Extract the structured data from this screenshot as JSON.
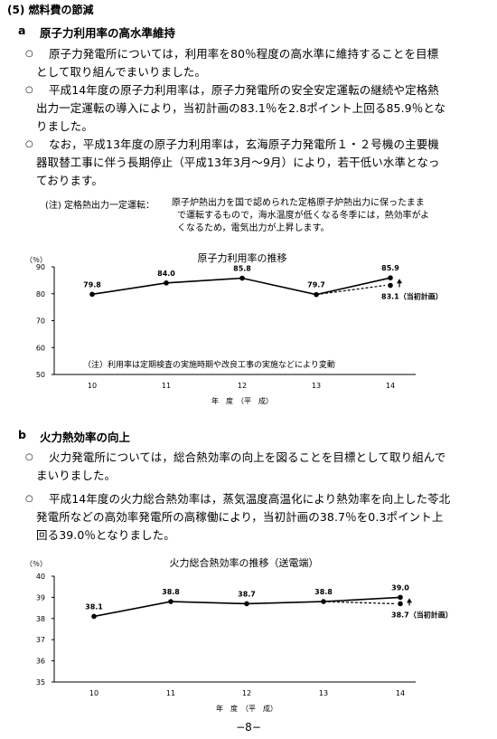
{
  "section": {
    "heading": "(5) 燃料費の節減",
    "a": {
      "marker": "a",
      "title": "原子力利用率の高水準維持",
      "bullets": [
        {
          "lines": [
            "原子力発電所については，利用率を80％程度の高水準に維持することを目標",
            "として取り組んでまいりました。"
          ]
        },
        {
          "lines": [
            "平成14年度の原子力利用率は，原子力発電所の安全安定運転の継続や定格熱",
            "出力一定運転の導入により，当初計画の83.1％を2.8ポイント上回る85.9％とな",
            "りました。"
          ]
        },
        {
          "lines": [
            "なお，平成13年度の原子力利用率は，玄海原子力発電所１・２号機の主要機",
            "器取替工事に伴う長期停止（平成13年3月～9月）により，若干低い水準となっ",
            "ております。"
          ]
        }
      ],
      "note_label": "(注) 定格熱出力一定運転：",
      "note_lines": [
        "原子炉熱出力を国で認められた定格原子炉熱出力に保ったまま",
        "で運転するもので，海水温度が低くなる冬季には，熱効率がよ",
        "くなるため，電気出力が上昇します。"
      ]
    },
    "b": {
      "marker": "b",
      "title": "火力熱効率の向上",
      "bullets": [
        {
          "lines": [
            "火力発電所については，総合熱効率の向上を図ることを目標として取り組んで",
            "まいりました。"
          ]
        },
        {
          "lines": [
            "平成14年度の火力総合熱効率は，蒸気温度高温化により熱効率を向上した苓北",
            "発電所などの高効率発電所の高稼働により，当初計画の38.7％を0.3ポイント上",
            "回る39.0％となりました。"
          ]
        }
      ]
    }
  },
  "bullet_glyph": "○",
  "chart_data": [
    {
      "type": "line",
      "title": "原子力利用率の推移",
      "ylabel": "（％）",
      "xlabel": "年　度　（平　成）",
      "categories": [
        "10",
        "11",
        "12",
        "13",
        "14"
      ],
      "yticks": [
        "90",
        "80",
        "70",
        "60",
        "50"
      ],
      "ylim": [
        50,
        90
      ],
      "series": [
        {
          "values": [
            79.8,
            84.0,
            85.8,
            79.7,
            85.9
          ]
        }
      ],
      "data_labels": [
        "79.8",
        "84.0",
        "85.8",
        "79.7",
        "85.9"
      ],
      "plan": {
        "value": 83.1,
        "label": "83.1（当初計画）"
      },
      "annotation": "（注）利用率は定期検査の実施時期や改良工事の実施などにより変動"
    },
    {
      "type": "line",
      "title": "火力総合熱効率の推移（送電端）",
      "ylabel": "（％）",
      "xlabel": "年　度　（平　成）",
      "categories": [
        "10",
        "11",
        "12",
        "13",
        "14"
      ],
      "yticks": [
        "40",
        "39",
        "38",
        "37",
        "36",
        "35"
      ],
      "ylim": [
        35,
        40
      ],
      "series": [
        {
          "values": [
            38.1,
            38.8,
            38.7,
            38.8,
            39.0
          ]
        }
      ],
      "data_labels": [
        "38.1",
        "38.8",
        "38.7",
        "38.8",
        "39.0"
      ],
      "plan": {
        "value": 38.7,
        "label": "38.7（当初計画）"
      }
    }
  ],
  "page_number": "−8−"
}
